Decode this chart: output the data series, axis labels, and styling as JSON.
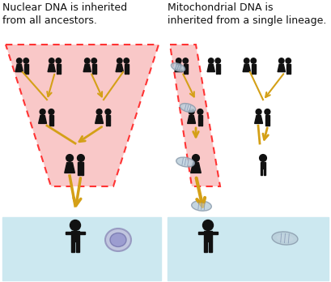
{
  "bg_color": "#ffffff",
  "panel_bg": "#cce8f0",
  "funnel_fill": "#f9c8c8",
  "funnel_border": "#ff3333",
  "arrow_color": "#d4a017",
  "person_color": "#111111",
  "title_left": "Nuclear DNA is inherited\nfrom all ancestors.",
  "title_right": "Mitochondrial DNA is\ninherited from a single lineage.",
  "title_fontsize": 9.0,
  "fig_width": 4.09,
  "fig_height": 3.48,
  "dpi": 100
}
